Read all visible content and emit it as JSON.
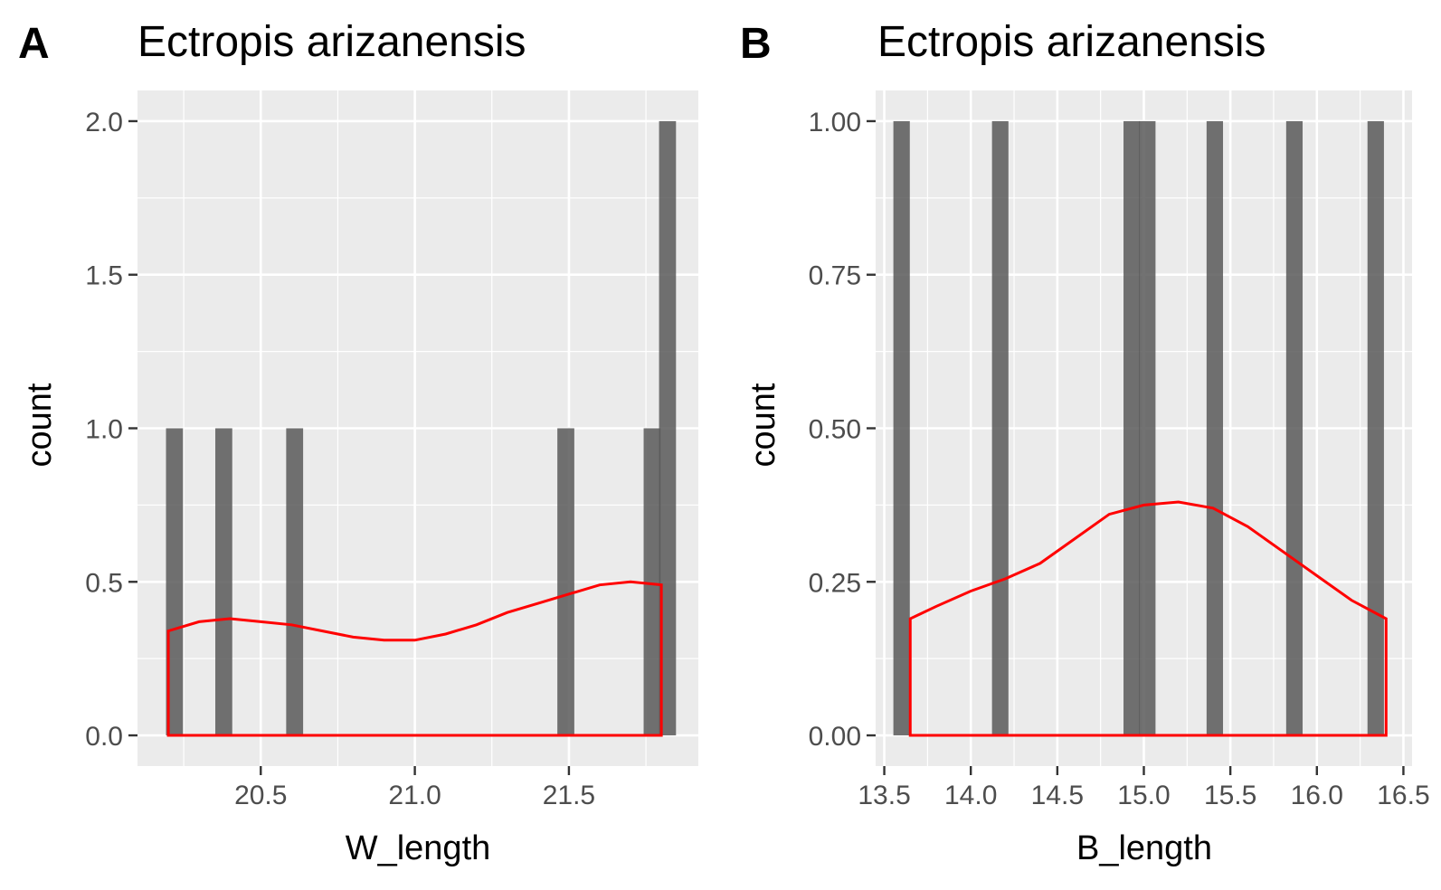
{
  "figure": {
    "panels": [
      "A",
      "B"
    ]
  },
  "colors": {
    "panel_background": "#ebebeb",
    "grid_major": "#ffffff",
    "bar_fill": "#595959",
    "density_line": "#ff0000",
    "tick_text": "#4d4d4d",
    "title_text": "#000000"
  },
  "chart_data": [
    {
      "type": "bar",
      "panel_label": "A",
      "title": "Ectropis arizanensis",
      "xlabel": "W_length",
      "ylabel": "count",
      "xlim": [
        20.1,
        21.92
      ],
      "ylim": [
        -0.1,
        2.1
      ],
      "x_ticks": [
        20.5,
        21.0,
        21.5
      ],
      "x_tick_labels": [
        "20.5",
        "21.0",
        "21.5"
      ],
      "y_ticks": [
        0.0,
        0.5,
        1.0,
        1.5,
        2.0
      ],
      "y_tick_labels": [
        "0.0",
        "0.5",
        "1.0",
        "1.5",
        "2.0"
      ],
      "grid": true,
      "bin_width": 0.055,
      "bars": [
        {
          "x": 20.22,
          "count": 1
        },
        {
          "x": 20.38,
          "count": 1
        },
        {
          "x": 20.61,
          "count": 1
        },
        {
          "x": 21.49,
          "count": 1
        },
        {
          "x": 21.77,
          "count": 1
        },
        {
          "x": 21.82,
          "count": 2
        }
      ],
      "density_series": {
        "x": [
          20.2,
          20.3,
          20.4,
          20.5,
          20.6,
          20.7,
          20.8,
          20.9,
          21.0,
          21.1,
          21.2,
          21.3,
          21.4,
          21.5,
          21.6,
          21.7,
          21.8
        ],
        "y": [
          0.34,
          0.37,
          0.38,
          0.37,
          0.36,
          0.34,
          0.32,
          0.31,
          0.31,
          0.33,
          0.36,
          0.4,
          0.43,
          0.46,
          0.49,
          0.5,
          0.49
        ]
      }
    },
    {
      "type": "bar",
      "panel_label": "B",
      "title": "Ectropis arizanensis",
      "xlabel": "B_length",
      "ylabel": "count",
      "xlim": [
        13.45,
        16.55
      ],
      "ylim": [
        -0.05,
        1.05
      ],
      "x_ticks": [
        13.5,
        14.0,
        14.5,
        15.0,
        15.5,
        16.0,
        16.5
      ],
      "x_tick_labels": [
        "13.5",
        "14.0",
        "14.5",
        "15.0",
        "15.5",
        "16.0",
        "16.5"
      ],
      "y_ticks": [
        0.0,
        0.25,
        0.5,
        0.75,
        1.0
      ],
      "y_tick_labels": [
        "0.00",
        "0.25",
        "0.50",
        "0.75",
        "1.00"
      ],
      "grid": true,
      "bin_width": 0.095,
      "bars": [
        {
          "x": 13.6,
          "count": 1
        },
        {
          "x": 14.17,
          "count": 1
        },
        {
          "x": 14.93,
          "count": 1
        },
        {
          "x": 15.02,
          "count": 1
        },
        {
          "x": 15.41,
          "count": 1
        },
        {
          "x": 15.87,
          "count": 1
        },
        {
          "x": 16.34,
          "count": 1
        }
      ],
      "density_series": {
        "x": [
          13.65,
          13.8,
          14.0,
          14.2,
          14.4,
          14.6,
          14.8,
          15.0,
          15.2,
          15.4,
          15.6,
          15.8,
          16.0,
          16.2,
          16.4
        ],
        "y": [
          0.19,
          0.21,
          0.235,
          0.255,
          0.28,
          0.32,
          0.36,
          0.375,
          0.38,
          0.37,
          0.34,
          0.3,
          0.26,
          0.22,
          0.19
        ]
      }
    }
  ]
}
